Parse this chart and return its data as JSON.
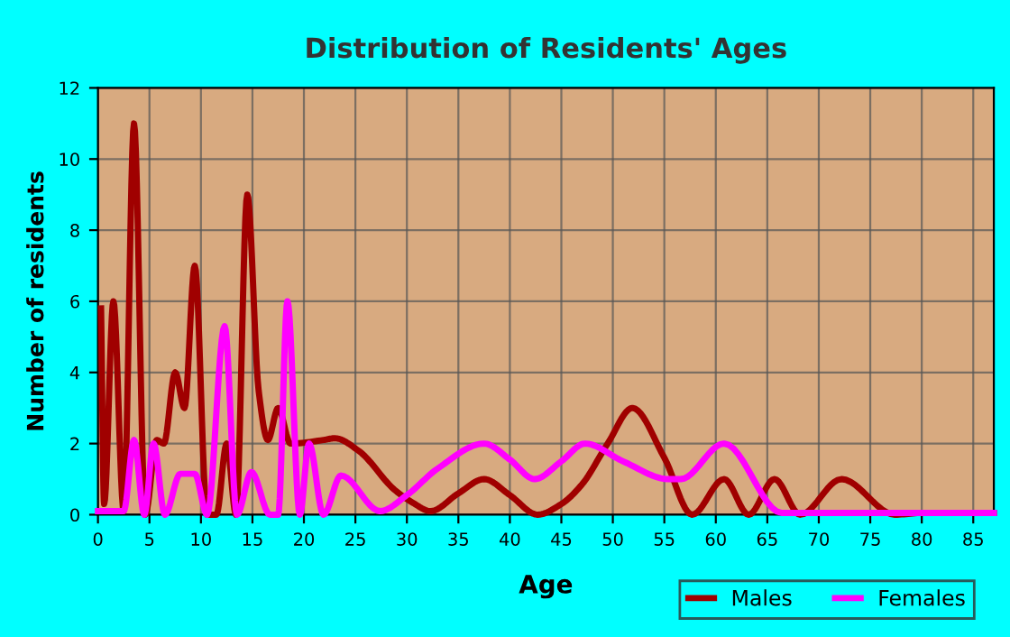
{
  "chart_data": {
    "type": "line",
    "title": "Distribution of Residents' Ages",
    "xlabel": "Age",
    "ylabel": "Number of residents",
    "xlim": [
      0,
      87
    ],
    "xticks": [
      0,
      5,
      10,
      15,
      20,
      25,
      30,
      35,
      40,
      45,
      50,
      55,
      60,
      65,
      70,
      75,
      80,
      85
    ],
    "ylim": [
      0,
      12
    ],
    "yticks": [
      0,
      2,
      4,
      6,
      8,
      10,
      12
    ],
    "grid": true,
    "legend": "bottom right",
    "line_style": "solid",
    "marker": "none",
    "series": [
      {
        "name": "Males",
        "color": "#a00000",
        "x": [
          0.3,
          0.6,
          1.5,
          2.5,
          3.5,
          4.6,
          5.7,
          6.4,
          7.5,
          8.4,
          9.4,
          10.6,
          11.5,
          12.5,
          13.4,
          14.5,
          15.6,
          16.5,
          17.5,
          18.7,
          21.9,
          23,
          25.3,
          28.8,
          30.5,
          32.3,
          35,
          37.5,
          40,
          42.7,
          45,
          47,
          49.5,
          51.9,
          55,
          57.7,
          60.8,
          63.2,
          65.7,
          68.2,
          72.2,
          77.4,
          80,
          87
        ],
        "values": [
          5.8,
          0.3,
          6,
          0.1,
          11,
          0,
          2.1,
          2,
          4,
          3,
          7,
          0,
          0,
          2,
          0,
          9,
          3.5,
          2.1,
          3,
          2,
          2.1,
          2.15,
          1.8,
          0.7,
          0.35,
          0.1,
          0.6,
          1,
          0.55,
          0,
          0.3,
          0.85,
          2,
          3,
          1.6,
          0,
          1,
          0,
          1,
          0,
          1,
          0,
          0.05,
          0.05
        ]
      },
      {
        "name": "Females",
        "color": "#ff00ff",
        "x": [
          0,
          2.5,
          3.5,
          4.5,
          5.4,
          6.5,
          8,
          9.4,
          10.6,
          12.3,
          13.5,
          14.9,
          16.7,
          17.5,
          18.4,
          19.6,
          20.5,
          21.9,
          23.6,
          27.4,
          30,
          33,
          37.5,
          40,
          42.4,
          45,
          47.3,
          51,
          55.4,
          56.6,
          60.8,
          66.4,
          87
        ],
        "values": [
          0.1,
          0.1,
          2.1,
          0,
          2,
          0,
          1.15,
          1.15,
          0,
          5.3,
          0,
          1.2,
          0,
          0,
          6,
          0,
          2,
          0,
          1.1,
          0.1,
          0.55,
          1.3,
          2,
          1.55,
          1,
          1.5,
          2,
          1.5,
          1,
          1,
          2,
          0.05,
          0.05
        ]
      }
    ]
  }
}
